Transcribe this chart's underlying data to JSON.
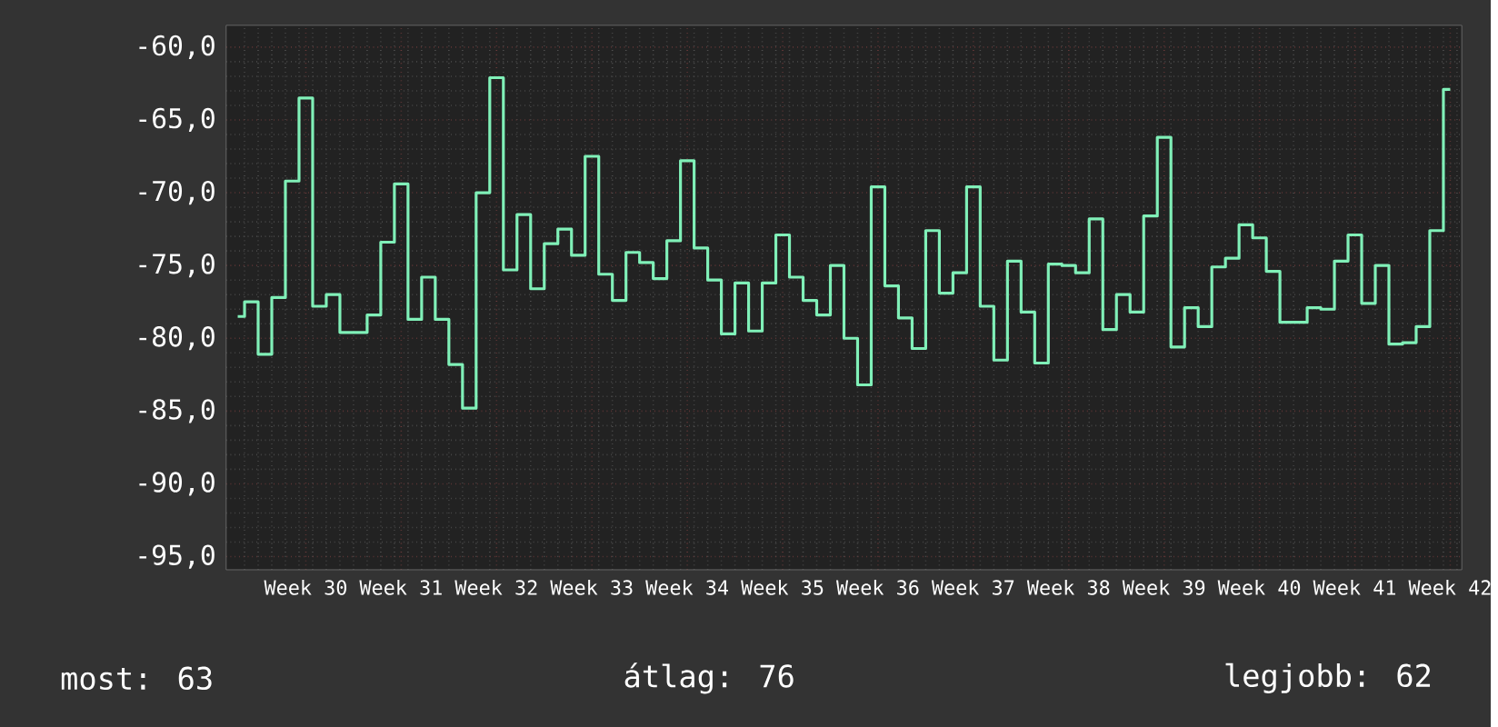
{
  "chart_data": {
    "type": "step",
    "color": "#80f0b8",
    "grid": true,
    "ylim": [
      -95.9,
      -58.5
    ],
    "yticks": [
      {
        "value": -95,
        "label": "-95,0"
      },
      {
        "value": -90,
        "label": "-90,0"
      },
      {
        "value": -85,
        "label": "-85,0"
      },
      {
        "value": -80,
        "label": "-80,0"
      },
      {
        "value": -75,
        "label": "-75,0"
      },
      {
        "value": -70,
        "label": "-70,0"
      },
      {
        "value": -65,
        "label": "-65,0"
      },
      {
        "value": -60,
        "label": "-60,0"
      }
    ],
    "categories": [
      null,
      null,
      null,
      null,
      null,
      "Week 30",
      null,
      null,
      null,
      null,
      null,
      null,
      "Week 31",
      null,
      null,
      null,
      null,
      null,
      null,
      "Week 32",
      null,
      null,
      null,
      null,
      null,
      null,
      "Week 33",
      null,
      null,
      null,
      null,
      null,
      null,
      "Week 34",
      null,
      null,
      null,
      null,
      null,
      null,
      "Week 35",
      null,
      null,
      null,
      null,
      null,
      null,
      "Week 36",
      null,
      null,
      null,
      null,
      null,
      null,
      "Week 37",
      null,
      null,
      null,
      null,
      null,
      null,
      "Week 38",
      null,
      null,
      null,
      null,
      null,
      null,
      "Week 39",
      null,
      null,
      null,
      null,
      null,
      null,
      "Week 40",
      null,
      null,
      null,
      null,
      null,
      null,
      "Week 41",
      null,
      null,
      null,
      null,
      null,
      null,
      "Week 42"
    ],
    "values": [
      -78.5,
      -77.5,
      -81.1,
      -77.2,
      -69.2,
      -63.5,
      -77.8,
      -77.0,
      -79.6,
      -79.6,
      -78.4,
      -73.4,
      -69.4,
      -78.7,
      -75.8,
      -78.7,
      -81.8,
      -84.8,
      -70.0,
      -62.1,
      -75.3,
      -71.5,
      -76.6,
      -73.5,
      -72.5,
      -74.3,
      -67.5,
      -75.6,
      -77.4,
      -74.1,
      -74.8,
      -75.9,
      -73.3,
      -67.8,
      -73.8,
      -76.0,
      -79.7,
      -76.2,
      -79.5,
      -76.2,
      -72.9,
      -75.8,
      -77.4,
      -78.4,
      -75.0,
      -80.0,
      -83.2,
      -69.6,
      -76.4,
      -78.6,
      -80.7,
      -72.6,
      -76.9,
      -75.5,
      -69.6,
      -77.8,
      -81.5,
      -74.7,
      -78.2,
      -81.7,
      -74.9,
      -75.0,
      -75.5,
      -71.8,
      -79.4,
      -77.0,
      -78.2,
      -71.6,
      -66.2,
      -80.6,
      -77.9,
      -79.2,
      -75.1,
      -74.5,
      -72.2,
      -73.1,
      -75.4,
      -78.9,
      -78.9,
      -77.9,
      -78.0,
      -74.7,
      -72.9,
      -77.6,
      -75.0,
      -80.4,
      -80.3,
      -79.2,
      -72.6,
      -62.9
    ],
    "annotations": [
      "most: 63",
      "átlag: 76",
      "legjobb: 62"
    ]
  }
}
